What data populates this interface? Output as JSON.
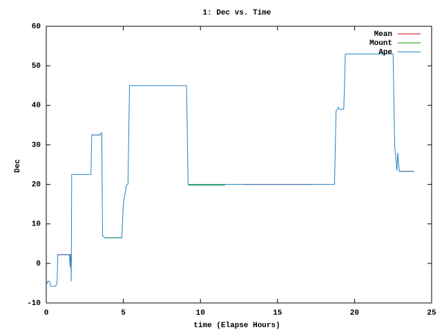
{
  "chart_data": {
    "type": "line",
    "title": "1: Dec vs. Time",
    "x_label": "time (Elapse Hours)",
    "y_label": "Dec",
    "xlim": [
      0,
      25
    ],
    "xticks": [
      0,
      5,
      10,
      15,
      20,
      25
    ],
    "ylim": [
      -10,
      60
    ],
    "yticks": [
      -10,
      0,
      10,
      20,
      30,
      40,
      50,
      60
    ],
    "legend": "top-right",
    "series": [
      {
        "name": "Mean",
        "color": "#d00000",
        "x": [
          0.7,
          1.6,
          1.6,
          2.95,
          3.5,
          3.5,
          12.8,
          17.2,
          17.2,
          22.9,
          23.85
        ],
        "values": [
          2.2,
          2.2,
          null,
          32.5,
          32.5,
          null,
          20,
          20,
          null,
          23.3,
          23.3
        ]
      },
      {
        "name": "Mount",
        "color": "#00a000",
        "x": [
          0.3,
          0.6,
          0.6,
          3.8,
          4.9,
          4.9,
          9.2,
          11.6
        ],
        "values": [
          -5.8,
          -5.8,
          null,
          6.5,
          6.5,
          null,
          19.8,
          19.8
        ]
      },
      {
        "name": "Ape",
        "color": "#2080c0",
        "x": [
          0,
          0.1,
          0.2,
          0.3,
          0.6,
          0.7,
          0.75,
          1.5,
          1.55,
          1.57,
          1.6,
          1.62,
          1.65,
          2.9,
          2.95,
          3.5,
          3.55,
          3.6,
          3.65,
          3.8,
          4.9,
          5.0,
          5.2,
          5.3,
          5.4,
          9.1,
          9.2,
          18.7,
          18.8,
          18.95,
          19.0,
          19.3,
          19.4,
          22.5,
          22.6,
          22.75,
          22.8,
          22.9,
          23.85
        ],
        "values": [
          -5.5,
          -4.5,
          -4.5,
          -5.8,
          -5.8,
          -5,
          2.2,
          2.2,
          -1,
          2.2,
          2.2,
          -4.5,
          22.5,
          22.5,
          32.5,
          32.5,
          33,
          33,
          7,
          6.5,
          6.5,
          15,
          19.8,
          20,
          45,
          45,
          20,
          20,
          38.5,
          39.5,
          39,
          39,
          53,
          53,
          30,
          23.5,
          28,
          23.3,
          23.3
        ]
      }
    ]
  }
}
